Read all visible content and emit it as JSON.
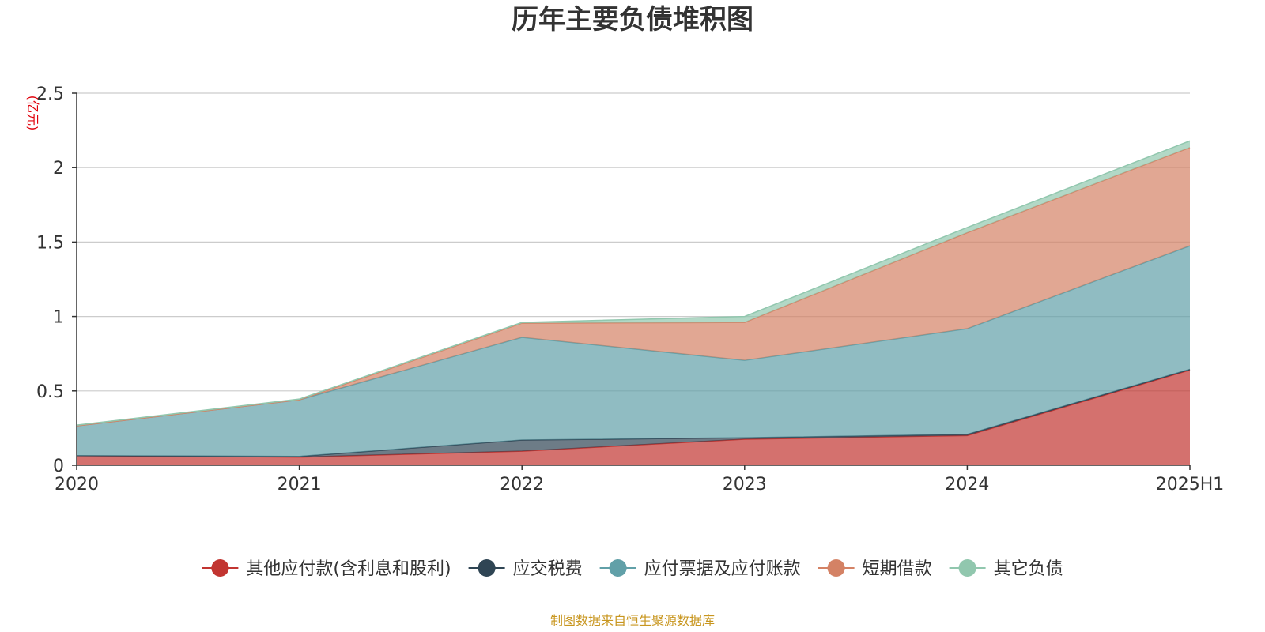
{
  "title": "历年主要负债堆积图",
  "source_note": "制图数据来自恒生聚源数据库",
  "chart_data": {
    "type": "area",
    "stacked": true,
    "title": "历年主要负债堆积图",
    "unit": "(亿元)",
    "categories": [
      "2020",
      "2021",
      "2022",
      "2023",
      "2024",
      "2025H1"
    ],
    "ylim": [
      0,
      2.5
    ],
    "yticks": [
      0,
      0.5,
      1,
      1.5,
      2,
      2.5
    ],
    "ytick_labels": [
      "0",
      "0.5",
      "1",
      "1.5",
      "2",
      "2.5"
    ],
    "grid": true,
    "legend_position": "bottom",
    "series": [
      {
        "name": "其他应付款(含利息和股利)",
        "color": "#c23531",
        "values": [
          0.065,
          0.055,
          0.095,
          0.175,
          0.2,
          0.64
        ]
      },
      {
        "name": "应交税费",
        "color": "#2f4554",
        "values": [
          0.0,
          0.005,
          0.075,
          0.01,
          0.008,
          0.005
        ]
      },
      {
        "name": "应付票据及应付账款",
        "color": "#61a0a8",
        "values": [
          0.2,
          0.38,
          0.69,
          0.52,
          0.71,
          0.83
        ]
      },
      {
        "name": "短期借款",
        "color": "#d48265",
        "values": [
          0.0,
          0.0,
          0.095,
          0.255,
          0.645,
          0.66
        ]
      },
      {
        "name": "其它负债",
        "color": "#91c7ae",
        "values": [
          0.005,
          0.005,
          0.005,
          0.04,
          0.035,
          0.045
        ]
      }
    ]
  }
}
